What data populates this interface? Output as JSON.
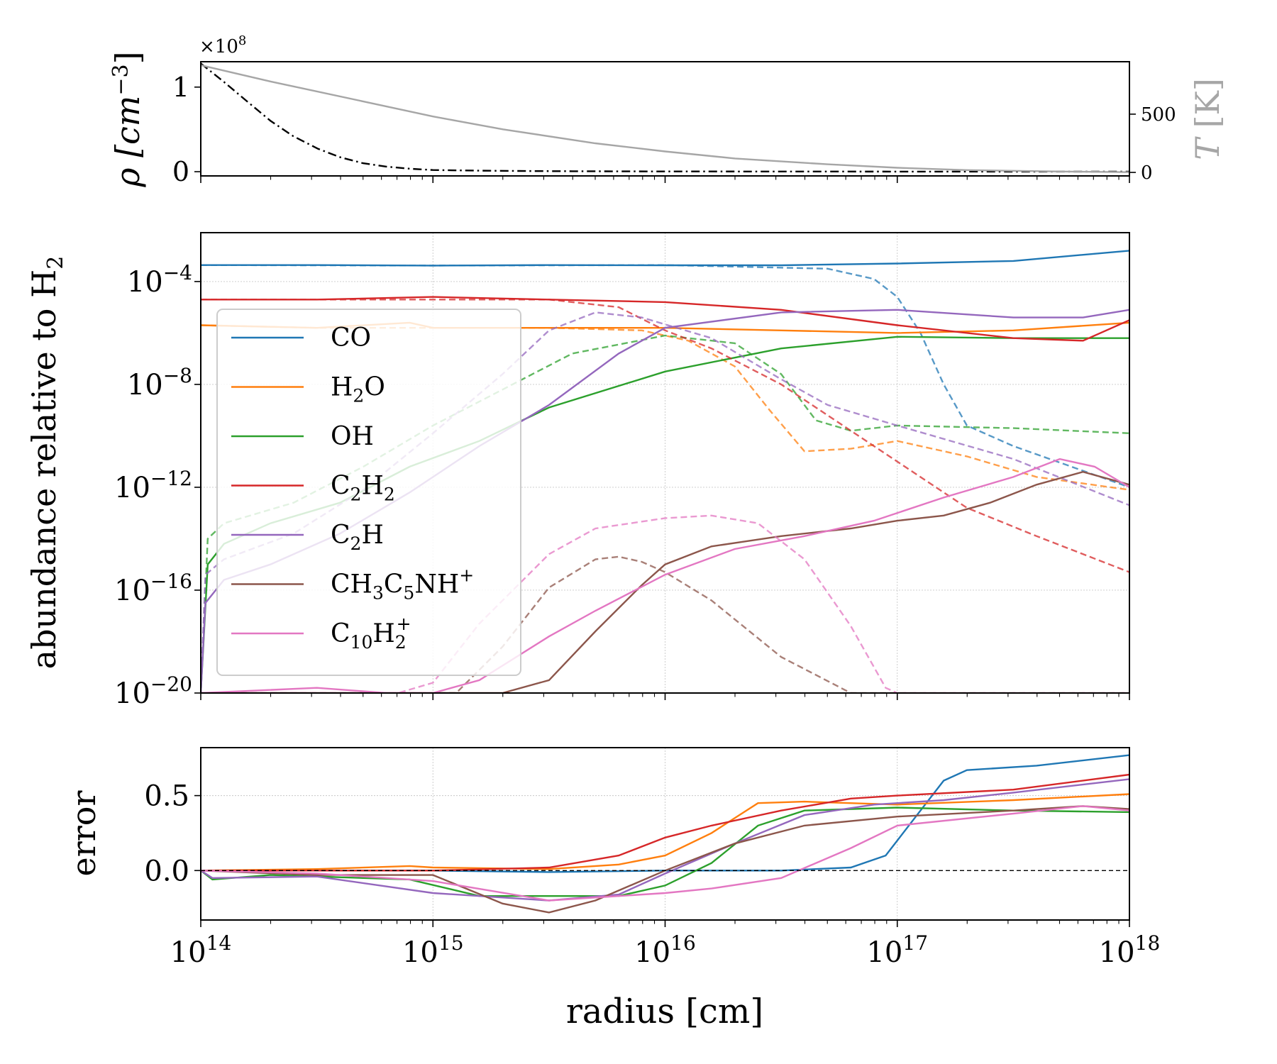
{
  "colors": {
    "CO": "#1f77b4",
    "H2O": "#ff7f0e",
    "OH": "#2ca02c",
    "C2H2": "#d62728",
    "C2H": "#9467bd",
    "CH3C5NH+": "#8c564b",
    "C10H2+": "#e377c2",
    "density": "#000000",
    "temperature": "#a6a6a6"
  },
  "chart_data": [
    {
      "id": "top",
      "type": "line",
      "xlabel": "",
      "xscale": "log",
      "xlim": [
        100000000000000.0,
        1e+18
      ],
      "ylabel_left": "ρ [cm⁻³]",
      "ylabel_left_pre": "ρ [cm",
      "ylabel_left_sup": "−3",
      "ylabel_left_post": "]",
      "multiplier": "×10",
      "multiplier_exp": "8",
      "ylim_left": [
        -0.05,
        1.3
      ],
      "yticks_left": [
        "0",
        "1"
      ],
      "yticks_left_values": [
        0,
        1
      ],
      "ylabel_right": "T [K]",
      "ylabel_right_italic": "T",
      "ylabel_right_unit": "[K]",
      "ylim_right": [
        -30,
        950
      ],
      "yticks_right": [
        "0",
        "500"
      ],
      "yticks_right_values": [
        0,
        500
      ],
      "series": [
        {
          "name": "density",
          "axis": "left",
          "style": "dashdot",
          "x": [
            100000000000000.0,
            126000000000000.0,
            160000000000000.0,
            200000000000000.0,
            250000000000000.0,
            320000000000000.0,
            400000000000000.0,
            500000000000000.0,
            630000000000000.0,
            800000000000000.0,
            1000000000000000.0,
            1600000000000000.0,
            2500000000000000.0,
            4000000000000000.0,
            1e+16,
            1e+17,
            1e+18
          ],
          "y": [
            1.28,
            1.06,
            0.82,
            0.6,
            0.42,
            0.27,
            0.17,
            0.1,
            0.06,
            0.035,
            0.02,
            0.012,
            0.008,
            0.005,
            0.003,
            0.0015,
            0.001
          ]
        },
        {
          "name": "temperature",
          "axis": "right",
          "style": "solid",
          "x": [
            100000000000000.0,
            200000000000000.0,
            500000000000000.0,
            1000000000000000.0,
            2000000000000000.0,
            5000000000000000.0,
            1e+16,
            2e+16,
            5e+16,
            1e+17,
            2e+17,
            5e+17,
            1e+18
          ],
          "y": [
            920,
            780,
            610,
            480,
            370,
            250,
            180,
            120,
            70,
            40,
            20,
            8,
            2
          ]
        }
      ]
    },
    {
      "id": "middle",
      "type": "line",
      "ylabel": "abundance relative to H₂",
      "ylabel_pre": "abundance relative to H",
      "ylabel_sub": "2",
      "xscale": "log",
      "yscale": "log",
      "xlim": [
        100000000000000.0,
        1e+18
      ],
      "ylim_exp": [
        -20,
        -2.1
      ],
      "yticks_base": "10",
      "yticks_exp": [
        "−4",
        "−8",
        "−12",
        "−16",
        "−20"
      ],
      "yticks_exp_values": [
        -4,
        -8,
        -12,
        -16,
        -20
      ],
      "grid": true,
      "legend": {
        "position": "left",
        "entries": [
          {
            "key": "CO",
            "pre": "CO",
            "parts": []
          },
          {
            "key": "H2O",
            "pre": "H",
            "parts": [
              [
                "sub",
                "2"
              ],
              [
                "t",
                "O"
              ]
            ]
          },
          {
            "key": "OH",
            "pre": "OH",
            "parts": []
          },
          {
            "key": "C2H2",
            "pre": "C",
            "parts": [
              [
                "sub",
                "2"
              ],
              [
                "t",
                "H"
              ],
              [
                "sub",
                "2"
              ]
            ]
          },
          {
            "key": "C2H",
            "pre": "C",
            "parts": [
              [
                "sub",
                "2"
              ],
              [
                "t",
                "H"
              ]
            ]
          },
          {
            "key": "CH3C5NH+",
            "pre": "CH",
            "parts": [
              [
                "sub",
                "3"
              ],
              [
                "t",
                "C"
              ],
              [
                "sub",
                "5"
              ],
              [
                "t",
                "NH"
              ],
              [
                "sup",
                "+"
              ]
            ]
          },
          {
            "key": "C10H2+",
            "pre": "C",
            "parts": [
              [
                "sub",
                "10"
              ],
              [
                "t",
                "H"
              ],
              [
                "subsup",
                "2",
                "+"
              ]
            ]
          }
        ]
      },
      "series": [
        {
          "name": "CO",
          "style": "solid",
          "x_exp": [
            14,
            14.5,
            15,
            15.5,
            16,
            16.5,
            17,
            17.5,
            18
          ],
          "log_y": [
            -3.36,
            -3.36,
            -3.38,
            -3.36,
            -3.37,
            -3.37,
            -3.3,
            -3.2,
            -2.8
          ]
        },
        {
          "name": "CO",
          "style": "dashed",
          "x_exp": [
            14,
            15,
            16,
            16.7,
            16.9,
            17,
            17.1,
            17.2,
            17.3,
            17.5,
            18
          ],
          "log_y": [
            -3.36,
            -3.38,
            -3.36,
            -3.5,
            -3.9,
            -4.6,
            -6,
            -8,
            -9.6,
            -10.4,
            -12
          ]
        },
        {
          "name": "H2O",
          "style": "solid",
          "x_exp": [
            14,
            14.5,
            14.9,
            15,
            16,
            16.5,
            17,
            17.5,
            18
          ],
          "log_y": [
            -5.7,
            -5.8,
            -5.6,
            -5.8,
            -5.8,
            -5.9,
            -6,
            -5.9,
            -5.6
          ]
        },
        {
          "name": "H2O",
          "style": "dashed",
          "x_exp": [
            14,
            14.5,
            15,
            15.5,
            15.9,
            16.1,
            16.3,
            16.45,
            16.6,
            16.8,
            17,
            17.3,
            17.6,
            18
          ],
          "log_y": [
            -5.7,
            -5.8,
            -5.8,
            -5.8,
            -5.9,
            -6.3,
            -7.3,
            -9,
            -10.6,
            -10.5,
            -10.2,
            -10.8,
            -11.6,
            -12.1
          ]
        },
        {
          "name": "OH",
          "style": "solid",
          "x_exp": [
            14,
            14.03,
            14.1,
            14.3,
            14.6,
            14.9,
            15.2,
            15.5,
            16,
            16.5,
            17,
            17.5,
            18
          ],
          "log_y": [
            -20,
            -15,
            -14.2,
            -13.4,
            -12.6,
            -11.2,
            -10.2,
            -8.9,
            -7.5,
            -6.6,
            -6.15,
            -6.2,
            -6.2
          ]
        },
        {
          "name": "OH",
          "style": "dashed",
          "x_exp": [
            14,
            14.03,
            14.1,
            14.4,
            14.7,
            15,
            15.3,
            15.6,
            16,
            16.3,
            16.5,
            16.65,
            16.8,
            17,
            17.5,
            18
          ],
          "log_y": [
            -20,
            -14,
            -13.4,
            -12.6,
            -11.2,
            -9.6,
            -8.2,
            -6.8,
            -6.1,
            -6.4,
            -7.6,
            -9.4,
            -9.8,
            -9.6,
            -9.7,
            -9.9
          ]
        },
        {
          "name": "C2H2",
          "style": "solid",
          "x_exp": [
            14,
            14.5,
            15,
            15.5,
            16,
            16.5,
            17,
            17.5,
            17.8,
            18
          ],
          "log_y": [
            -4.7,
            -4.7,
            -4.6,
            -4.7,
            -4.8,
            -5.1,
            -5.7,
            -6.2,
            -6.3,
            -5.5
          ]
        },
        {
          "name": "C2H2",
          "style": "dashed",
          "x_exp": [
            14,
            15,
            15.5,
            15.8,
            16,
            16.2,
            16.5,
            16.8,
            17,
            17.3,
            17.6,
            18
          ],
          "log_y": [
            -4.7,
            -4.7,
            -4.7,
            -5,
            -5.9,
            -6.6,
            -8,
            -9.8,
            -11,
            -12.8,
            -13.9,
            -15.3
          ]
        },
        {
          "name": "C2H",
          "style": "solid",
          "x_exp": [
            14,
            14.02,
            14.1,
            14.3,
            14.6,
            14.9,
            15.2,
            15.5,
            15.8,
            16,
            16.5,
            17,
            17.5,
            17.8,
            18
          ],
          "log_y": [
            -20,
            -16.5,
            -15.6,
            -15,
            -13.8,
            -12.2,
            -10.4,
            -8.8,
            -6.8,
            -5.8,
            -5.2,
            -5.1,
            -5.4,
            -5.4,
            -5.1
          ]
        },
        {
          "name": "C2H",
          "style": "dashed",
          "x_exp": [
            14,
            14.02,
            14.1,
            14.4,
            14.7,
            15,
            15.3,
            15.5,
            15.7,
            15.9,
            16.2,
            16.5,
            16.7,
            17,
            17.5,
            18
          ],
          "log_y": [
            -20,
            -15.4,
            -14.8,
            -13.8,
            -12.1,
            -9.9,
            -7.6,
            -5.9,
            -5.2,
            -5.4,
            -6.2,
            -7.8,
            -8.8,
            -9.6,
            -10.9,
            -12.7
          ]
        },
        {
          "name": "CH3C5NH+",
          "style": "solid",
          "x_exp": [
            14,
            15,
            15.3,
            15.5,
            15.7,
            15.9,
            16,
            16.2,
            16.5,
            16.8,
            17,
            17.2,
            17.4,
            17.6,
            17.8,
            18
          ],
          "log_y": [
            -20,
            -20,
            -20,
            -19.5,
            -17.6,
            -15.8,
            -15,
            -14.3,
            -13.9,
            -13.6,
            -13.3,
            -13.1,
            -12.6,
            -11.9,
            -11.4,
            -11.9
          ]
        },
        {
          "name": "CH3C5NH+",
          "style": "dashed",
          "x_exp": [
            14,
            15.1,
            15.3,
            15.5,
            15.7,
            15.8,
            15.9,
            16,
            16.2,
            16.5,
            16.8,
            17,
            18
          ],
          "log_y": [
            -20,
            -20,
            -18.2,
            -15.9,
            -14.8,
            -14.7,
            -14.9,
            -15.3,
            -16.4,
            -18.6,
            -20,
            -20,
            -20
          ]
        },
        {
          "name": "C10H2+",
          "style": "solid",
          "x_exp": [
            14,
            14.5,
            14.8,
            15,
            15.2,
            15.5,
            15.7,
            16,
            16.3,
            16.6,
            16.9,
            17.2,
            17.5,
            17.7,
            17.85,
            18
          ],
          "log_y": [
            -20,
            -19.8,
            -20,
            -20,
            -19.5,
            -17.8,
            -16.8,
            -15.4,
            -14.4,
            -13.9,
            -13.3,
            -12.4,
            -11.6,
            -10.9,
            -11.2,
            -12
          ]
        },
        {
          "name": "C10H2+",
          "style": "dashed",
          "x_exp": [
            14,
            14.85,
            15,
            15.2,
            15.5,
            15.7,
            16,
            16.2,
            16.4,
            16.6,
            16.8,
            16.95,
            17,
            18
          ],
          "log_y": [
            -20,
            -20,
            -19.6,
            -17.3,
            -14.6,
            -13.6,
            -13.2,
            -13.1,
            -13.4,
            -14.8,
            -17.4,
            -19.8,
            -20,
            -20
          ]
        }
      ]
    },
    {
      "id": "bottom",
      "type": "line",
      "xlabel": "radius [cm]",
      "ylabel": "error",
      "xscale": "log",
      "xlim": [
        100000000000000.0,
        1e+18
      ],
      "ylim": [
        -0.33,
        0.82
      ],
      "yticks": [
        "0.0",
        "0.5"
      ],
      "yticks_values": [
        0,
        0.5
      ],
      "xtick_base": "10",
      "xtick_exps": [
        "14",
        "15",
        "16",
        "17",
        "18"
      ],
      "xtick_values_exp": [
        14,
        15,
        16,
        17,
        18
      ],
      "grid": true,
      "reference_line": 0,
      "series": [
        {
          "name": "CO",
          "x_exp": [
            14,
            14.5,
            15,
            15.5,
            16,
            16.5,
            16.8,
            16.95,
            17.1,
            17.2,
            17.3,
            17.6,
            18
          ],
          "y": [
            0,
            0,
            0,
            -0.01,
            0,
            0,
            0.02,
            0.1,
            0.4,
            0.6,
            0.67,
            0.7,
            0.77
          ]
        },
        {
          "name": "H2O",
          "x_exp": [
            14,
            14.5,
            14.9,
            15,
            15.5,
            15.8,
            16,
            16.2,
            16.4,
            16.6,
            17,
            17.5,
            18
          ],
          "y": [
            0,
            0.01,
            0.03,
            0.02,
            0.01,
            0.04,
            0.1,
            0.25,
            0.45,
            0.46,
            0.44,
            0.47,
            0.51
          ]
        },
        {
          "name": "OH",
          "x_exp": [
            14,
            14.05,
            14.3,
            14.9,
            15.2,
            15.5,
            15.8,
            16,
            16.2,
            16.4,
            16.6,
            17,
            17.5,
            18
          ],
          "y": [
            0,
            -0.06,
            -0.03,
            -0.06,
            -0.17,
            -0.17,
            -0.17,
            -0.1,
            0.05,
            0.3,
            0.4,
            0.42,
            0.4,
            0.39
          ]
        },
        {
          "name": "C2H2",
          "x_exp": [
            14,
            14.5,
            15,
            15.5,
            15.8,
            16,
            16.2,
            16.5,
            16.8,
            17,
            17.5,
            18
          ],
          "y": [
            0,
            0,
            0,
            0.02,
            0.1,
            0.22,
            0.3,
            0.4,
            0.48,
            0.5,
            0.54,
            0.64
          ]
        },
        {
          "name": "C2H",
          "x_exp": [
            14,
            14.05,
            14.5,
            15,
            15.5,
            15.8,
            16,
            16.3,
            16.6,
            16.9,
            17.2,
            17.5,
            18
          ],
          "y": [
            0,
            -0.05,
            -0.04,
            -0.15,
            -0.2,
            -0.16,
            -0.02,
            0.18,
            0.37,
            0.44,
            0.47,
            0.52,
            0.61
          ]
        },
        {
          "name": "CH3C5NH+",
          "x_exp": [
            14,
            14.5,
            15,
            15.3,
            15.5,
            15.7,
            16,
            16.3,
            16.6,
            17,
            17.5,
            17.8,
            18
          ],
          "y": [
            0,
            -0.03,
            -0.03,
            -0.22,
            -0.28,
            -0.2,
            0,
            0.18,
            0.3,
            0.36,
            0.4,
            0.43,
            0.41
          ]
        },
        {
          "name": "C10H2+",
          "x_exp": [
            14,
            14.5,
            15,
            15.5,
            16,
            16.2,
            16.5,
            16.8,
            17,
            17.5,
            17.8,
            18
          ],
          "y": [
            0,
            -0.02,
            -0.07,
            -0.2,
            -0.15,
            -0.12,
            -0.05,
            0.15,
            0.3,
            0.38,
            0.43,
            0.4
          ]
        }
      ]
    }
  ]
}
